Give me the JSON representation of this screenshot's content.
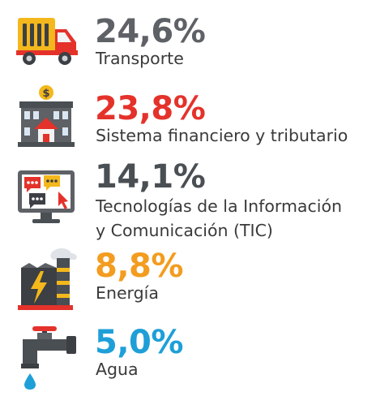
{
  "items": [
    {
      "value": "24,6%",
      "label": "Transporte",
      "color": "#5e6165",
      "icon": "truck-icon"
    },
    {
      "value": "23,8%",
      "label": "Sistema financiero y tributario",
      "color": "#e4322b",
      "icon": "bank-icon"
    },
    {
      "value": "14,1%",
      "label_line1": "Tecnologías de la Información",
      "label_line2": "y Comunicación (TIC)",
      "color": "#4a4f54",
      "icon": "computer-chat-icon"
    },
    {
      "value": "8,8%",
      "label": "Energía",
      "color": "#f39c1f",
      "icon": "power-plant-icon"
    },
    {
      "value": "5,0%",
      "label": "Agua",
      "color": "#1e9fd8",
      "icon": "water-tap-icon"
    }
  ]
}
